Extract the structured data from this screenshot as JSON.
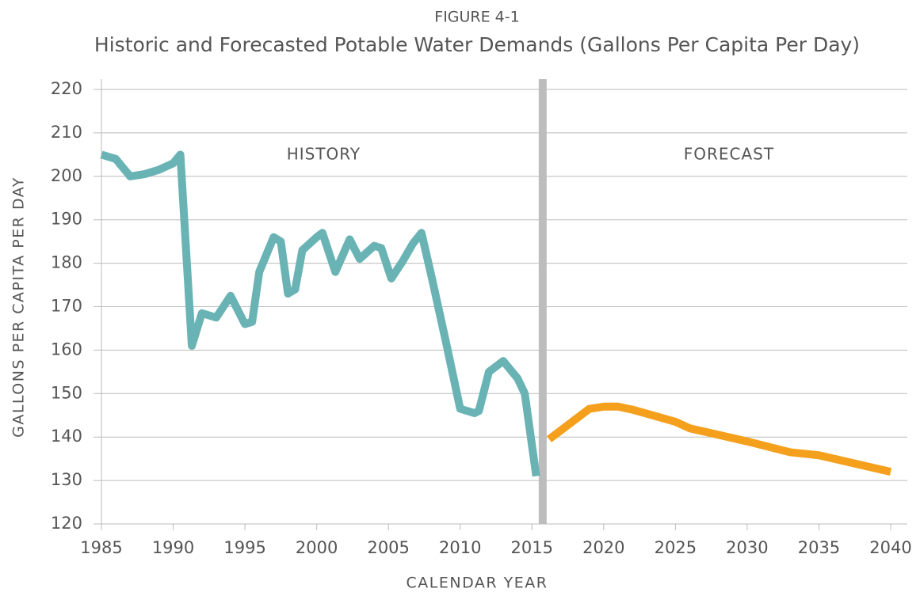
{
  "chart_data": {
    "type": "line",
    "title": "FIGURE 4-1",
    "subtitle": "Historic and Forecasted Potable Water Demands (Gallons Per Capita Per Day)",
    "xlabel": "CALENDAR YEAR",
    "ylabel": "GALLONS PER CAPITA PER DAY",
    "annotations": [
      "HISTORY",
      "FORECAST"
    ],
    "divider_x": 2015.75,
    "xlim": [
      1985,
      2040
    ],
    "xticks": [
      1985,
      1990,
      1995,
      2000,
      2005,
      2010,
      2015,
      2020,
      2025,
      2030,
      2035,
      2040
    ],
    "ylim": [
      120,
      220
    ],
    "yticks": [
      120,
      130,
      140,
      150,
      160,
      170,
      180,
      190,
      200,
      210,
      220
    ],
    "grid": true,
    "series": [
      {
        "name": "History",
        "color": "#6ab3b5",
        "x": [
          1985,
          1986,
          1987,
          1988,
          1989,
          1990,
          1990.5,
          1991.3,
          1992,
          1993,
          1994,
          1995,
          1995.5,
          1996,
          1997,
          1997.5,
          1998,
          1998.5,
          1999,
          2000,
          2000.4,
          2001.3,
          2002.3,
          2003,
          2004,
          2004.5,
          2005.2,
          2006,
          2006.7,
          2007.3,
          2008,
          2009,
          2010,
          2011,
          2011.3,
          2012,
          2013,
          2014,
          2014.5,
          2015.3
        ],
        "values": [
          205,
          204,
          200,
          200.5,
          201.5,
          203,
          205,
          161,
          168.5,
          167.5,
          172.5,
          166,
          166.5,
          178,
          186,
          185,
          173,
          174,
          183,
          186,
          187,
          178,
          185.5,
          181,
          184,
          183.5,
          176.5,
          180.5,
          184.5,
          187,
          177,
          162,
          146.5,
          145.5,
          146,
          155,
          157.5,
          153.5,
          150,
          131
        ]
      },
      {
        "name": "Forecast",
        "color": "#f5a01d",
        "x": [
          2016.2,
          2017,
          2018,
          2019,
          2020,
          2021,
          2022,
          2025,
          2026,
          2030,
          2033,
          2035,
          2040
        ],
        "values": [
          139.5,
          141.5,
          144,
          146.5,
          147,
          147,
          146.3,
          143.5,
          142,
          139,
          136.5,
          135.8,
          132
        ]
      }
    ]
  }
}
